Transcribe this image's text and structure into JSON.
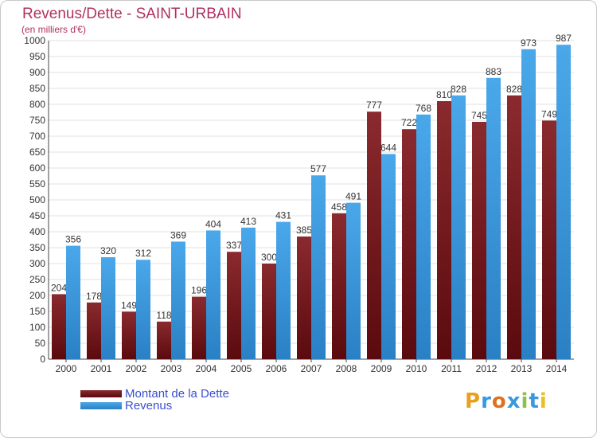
{
  "chart_data": {
    "type": "bar",
    "title": "Revenus/Dette - SAINT-URBAIN",
    "subtitle": "(en milliers d'€)",
    "categories": [
      "2000",
      "2001",
      "2002",
      "2003",
      "2004",
      "2005",
      "2006",
      "2007",
      "2008",
      "2009",
      "2010",
      "2011",
      "2012",
      "2013",
      "2014"
    ],
    "series": [
      {
        "name": "Montant de la Dette",
        "color": "#7a1e22",
        "values": [
          204,
          178,
          149,
          118,
          196,
          337,
          300,
          385,
          458,
          777,
          722,
          810,
          745,
          828,
          749
        ]
      },
      {
        "name": "Revenus",
        "color": "#3a98dc",
        "values": [
          356,
          320,
          312,
          369,
          404,
          413,
          431,
          577,
          491,
          644,
          768,
          828,
          883,
          973,
          987
        ]
      }
    ],
    "ylim": [
      0,
      1000
    ],
    "ytick_step": 50,
    "grid": true,
    "legend_position": "bottom-left"
  },
  "logo": {
    "letters": [
      "P",
      "r",
      "o",
      "x",
      "i",
      "t",
      "i"
    ],
    "colors": [
      "#e8a020",
      "#3a98dc",
      "#e07020",
      "#3a98dc",
      "#8bc34a",
      "#3a98dc",
      "#e8c020"
    ]
  }
}
